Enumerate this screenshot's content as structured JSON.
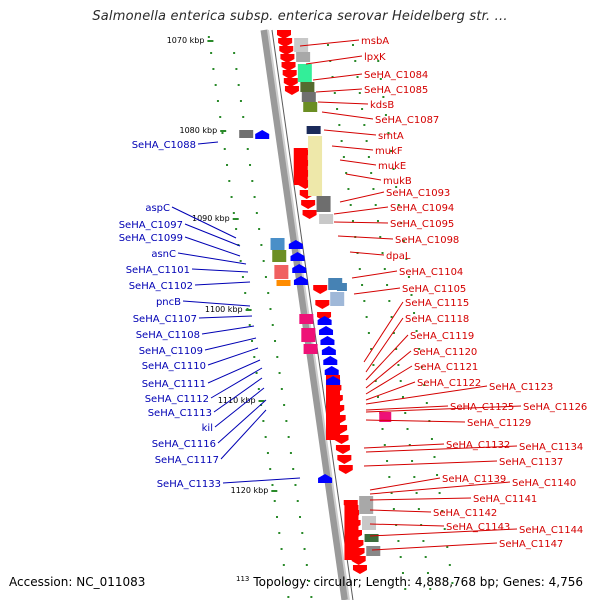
{
  "title": "Salmonella enterica subsp. enterica serovar Heidelberg str. ...",
  "footer": {
    "accession": "Accession: NC_011083",
    "position_label": "113",
    "topology": "Topology: circular; Length: 4,888,768 bp; Genes: 4,756"
  },
  "scale_labels": [
    "1070 kbp",
    "1080 kbp",
    "1090 kbp",
    "1100 kbp",
    "1110 kbp",
    "1120 kbp"
  ],
  "colors": {
    "backbone": "#8c8c8c",
    "forward_gene_label": "#d40000",
    "reverse_gene_label": "#0000b4",
    "tick": "#2a8a2a"
  },
  "forward_genes": [
    "msbA",
    "lpxK",
    "SeHA_C1084",
    "SeHA_C1085",
    "kdsB",
    "SeHA_C1087",
    "smtA",
    "mukF",
    "mukE",
    "mukB",
    "SeHA_C1093",
    "SeHA_C1094",
    "SeHA_C1095",
    "SeHA_C1098",
    "dpaL",
    "SeHA_C1104",
    "SeHA_C1105",
    "SeHA_C1115",
    "SeHA_C1118",
    "SeHA_C1119",
    "SeHA_C1120",
    "SeHA_C1121",
    "SeHA_C1122",
    "SeHA_C1123",
    "SeHA_C1125",
    "SeHA_C1126",
    "SeHA_C1129",
    "SeHA_C1132",
    "SeHA_C1134",
    "SeHA_C1137",
    "SeHA_C1139",
    "SeHA_C1140",
    "SeHA_C1141",
    "SeHA_C1142",
    "SeHA_C1143",
    "SeHA_C1144",
    "SeHA_C1147"
  ],
  "reverse_genes": [
    "SeHA_C1088",
    "aspC",
    "SeHA_C1097",
    "SeHA_C1099",
    "asnC",
    "SeHA_C1101",
    "SeHA_C1102",
    "pncB",
    "SeHA_C1107",
    "SeHA_C1108",
    "SeHA_C1109",
    "SeHA_C1110",
    "SeHA_C1111",
    "SeHA_C1112",
    "SeHA_C1113",
    "kil",
    "SeHA_C1116",
    "SeHA_C1117",
    "SeHA_C1133"
  ]
}
